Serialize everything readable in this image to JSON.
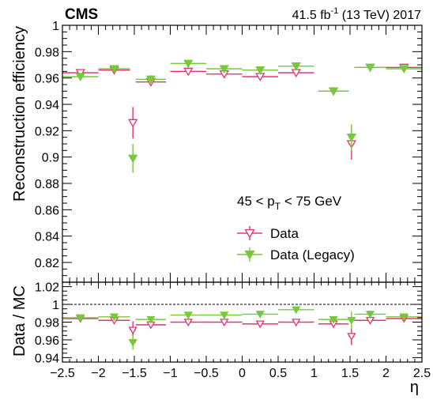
{
  "header": {
    "experiment": "CMS",
    "lumi_value": "41.5 fb",
    "lumi_exp": "-1",
    "lumi_suffix": " (13 TeV) 2017"
  },
  "colors": {
    "data": "#e8336e",
    "legacy": "#77c93b",
    "reference_line": "#000000"
  },
  "chart_data": [
    {
      "type": "scatter",
      "panel": "top",
      "ylabel": "Reconstruction efficiency",
      "ylim": [
        0.805,
        1.0
      ],
      "yticks": [
        0.82,
        0.84,
        0.86,
        0.88,
        0.9,
        0.92,
        0.94,
        0.96,
        0.98,
        1
      ],
      "ytick_labels": [
        "0.82",
        "0.84",
        "0.86",
        "0.88",
        "0.9",
        "0.92",
        "0.94",
        "0.96",
        "0.98",
        "1"
      ],
      "xlim": [
        -2.5,
        2.5
      ],
      "annotation": {
        "prefix": "45 < p",
        "sub": "T",
        "suffix": " < 75 GeV"
      },
      "legend": {
        "placement": "right",
        "entries": [
          "Data",
          "Data (Legacy)"
        ]
      },
      "series": [
        {
          "name": "Data",
          "marker": "open-triangle-down",
          "color": "#e8336e",
          "x": [
            -2.25,
            -1.78,
            -1.52,
            -1.27,
            -0.75,
            -0.25,
            0.25,
            0.75,
            1.27,
            1.52,
            1.78,
            2.25
          ],
          "xerr": [
            0.25,
            0.22,
            0.04,
            0.21,
            0.25,
            0.25,
            0.25,
            0.25,
            0.21,
            0.04,
            0.22,
            0.25
          ],
          "y": [
            0.964,
            0.966,
            0.926,
            0.957,
            0.965,
            0.963,
            0.961,
            0.964,
            0.95,
            0.91,
            0.968,
            0.968
          ],
          "yerr": [
            0.002,
            0.002,
            0.012,
            0.003,
            0.002,
            0.002,
            0.002,
            0.002,
            0.003,
            0.012,
            0.002,
            0.002
          ]
        },
        {
          "name": "Data (Legacy)",
          "marker": "filled-triangle-down",
          "color": "#77c93b",
          "x": [
            -2.25,
            -1.78,
            -1.52,
            -1.27,
            -0.75,
            -0.25,
            0.25,
            0.75,
            1.27,
            1.52,
            1.78,
            2.25
          ],
          "xerr": [
            0.25,
            0.22,
            0.04,
            0.21,
            0.25,
            0.25,
            0.25,
            0.25,
            0.21,
            0.04,
            0.22,
            0.25
          ],
          "y": [
            0.961,
            0.967,
            0.899,
            0.959,
            0.971,
            0.967,
            0.966,
            0.969,
            0.95,
            0.915,
            0.968,
            0.967
          ],
          "yerr": [
            0.003,
            0.002,
            0.011,
            0.003,
            0.002,
            0.002,
            0.002,
            0.003,
            0.003,
            0.01,
            0.002,
            0.002
          ]
        }
      ]
    },
    {
      "type": "scatter",
      "panel": "ratio",
      "ylabel": "Data / MC",
      "xlabel": "η",
      "ylim": [
        0.935,
        1.025
      ],
      "yticks": [
        0.94,
        0.96,
        0.98,
        1,
        1.02
      ],
      "ytick_labels": [
        "0.94",
        "0.96",
        "0.98",
        "1",
        "1.02"
      ],
      "xlim": [
        -2.5,
        2.5
      ],
      "xticks": [
        -2.5,
        -2,
        -1.5,
        -1,
        -0.5,
        0,
        0.5,
        1,
        1.5,
        2,
        2.5
      ],
      "xtick_labels": [
        "−2.5",
        "−2",
        "−1.5",
        "−1",
        "−0.5",
        "0",
        "0.5",
        "1",
        "1.5",
        "2",
        "2.5"
      ],
      "reference": 1.0,
      "series": [
        {
          "name": "Data",
          "marker": "open-triangle-down",
          "color": "#e8336e",
          "x": [
            -2.25,
            -1.78,
            -1.52,
            -1.27,
            -0.75,
            -0.25,
            0.25,
            0.75,
            1.27,
            1.52,
            1.78,
            2.25
          ],
          "xerr": [
            0.25,
            0.22,
            0.04,
            0.21,
            0.25,
            0.25,
            0.25,
            0.25,
            0.21,
            0.04,
            0.22,
            0.25
          ],
          "y": [
            0.984,
            0.982,
            0.971,
            0.977,
            0.98,
            0.98,
            0.978,
            0.98,
            0.978,
            0.964,
            0.982,
            0.984
          ],
          "yerr": [
            0.002,
            0.002,
            0.01,
            0.003,
            0.002,
            0.002,
            0.002,
            0.002,
            0.003,
            0.01,
            0.002,
            0.002
          ]
        },
        {
          "name": "Data (Legacy)",
          "marker": "filled-triangle-down",
          "color": "#77c93b",
          "x": [
            -2.25,
            -1.78,
            -1.52,
            -1.27,
            -0.75,
            -0.25,
            0.25,
            0.75,
            1.27,
            1.52,
            1.78,
            2.25
          ],
          "xerr": [
            0.25,
            0.22,
            0.04,
            0.21,
            0.25,
            0.25,
            0.25,
            0.25,
            0.21,
            0.04,
            0.22,
            0.25
          ],
          "y": [
            0.985,
            0.986,
            0.957,
            0.983,
            0.988,
            0.988,
            0.989,
            0.994,
            0.983,
            0.982,
            0.989,
            0.986
          ],
          "yerr": [
            0.002,
            0.002,
            0.008,
            0.003,
            0.002,
            0.002,
            0.002,
            0.003,
            0.003,
            0.01,
            0.002,
            0.002
          ]
        }
      ]
    }
  ]
}
